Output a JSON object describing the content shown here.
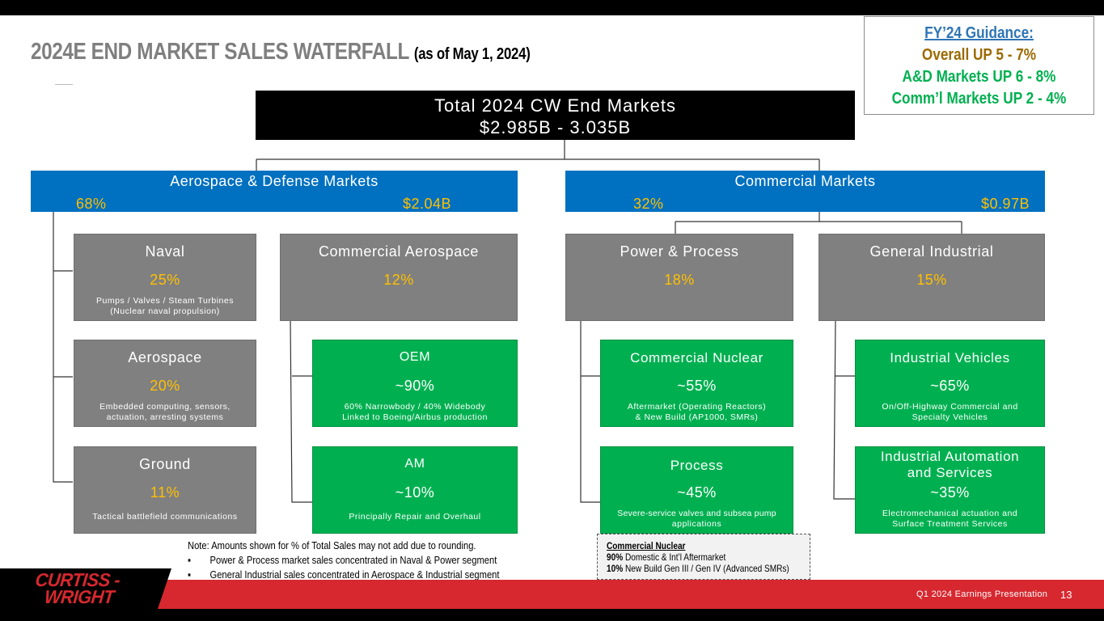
{
  "header": {
    "title": "2024E END MARKET SALES WATERFALL",
    "subtitle": "(as of May 1, 2024)"
  },
  "guidance": {
    "heading": "FY’24 Guidance:",
    "overall": "Overall UP 5 - 7%",
    "ad": "A&D Markets UP 6 - 8%",
    "comm": "Comm’l Markets UP 2 - 4%"
  },
  "total": {
    "label": "Total 2024 CW End Markets",
    "value": "$2.985B - 3.035B"
  },
  "ad_segment": {
    "name": "Aerospace & Defense Markets",
    "pct": "68%",
    "amount": "$2.04B"
  },
  "comm_segment": {
    "name": "Commercial Markets",
    "pct": "32%",
    "amount": "$0.97B"
  },
  "boxes": {
    "naval": {
      "title": "Naval",
      "pct": "25%",
      "desc1": "Pumps / Valves / Steam Turbines",
      "desc2": "(Nuclear naval propulsion)"
    },
    "aerospace": {
      "title": "Aerospace",
      "pct": "20%",
      "desc1": "Embedded computing, sensors,",
      "desc2": "actuation, arresting systems"
    },
    "ground": {
      "title": "Ground",
      "pct": "11%",
      "desc1": "Tactical battlefield communications"
    },
    "comm_aero": {
      "title": "Commercial Aerospace",
      "pct": "12%"
    },
    "oem": {
      "title": "OEM",
      "pct": "~90%",
      "desc1": "60% Narrowbody / 40% Widebody",
      "desc2": "Linked to Boeing/Airbus production"
    },
    "am": {
      "title": "AM",
      "pct": "~10%",
      "desc1": "Principally Repair and Overhaul"
    },
    "power": {
      "title": "Power & Process",
      "pct": "18%"
    },
    "nuclear": {
      "title": "Commercial Nuclear",
      "pct": "~55%",
      "desc1": "Aftermarket (Operating Reactors)",
      "desc2": "& New Build (AP1000, SMRs)"
    },
    "process": {
      "title": "Process",
      "pct": "~45%",
      "desc1": "Severe-service valves and subsea pump",
      "desc2": "applications"
    },
    "general": {
      "title": "General Industrial",
      "pct": "15%"
    },
    "vehicles": {
      "title": "Industrial Vehicles",
      "pct": "~65%",
      "desc1": "On/Off-Highway Commercial and",
      "desc2": "Specialty Vehicles"
    },
    "automation": {
      "title1": "Industrial Automation",
      "title2": "and Services",
      "pct": "~35%",
      "desc1": "Electromechanical actuation and",
      "desc2": "Surface Treatment Services"
    }
  },
  "notes": {
    "main": "Note: Amounts shown for % of Total Sales may not add due to rounding.",
    "b1": "Power & Process market sales concentrated in Naval & Power segment",
    "b2": "General Industrial sales concentrated in Aerospace & Industrial segment"
  },
  "nuclear_note": {
    "heading": "Commercial Nuclear",
    "l1_bold": "90%",
    "l1_text": " Domestic & Int’l Aftermarket",
    "l2_bold": "10%",
    "l2_text": " New Build Gen III / Gen IV (Advanced SMRs)"
  },
  "footer": {
    "logo_line1": "CURTISS -",
    "logo_line2": "WRIGHT",
    "presentation": "Q1 2024 Earnings Presentation",
    "page": "13"
  },
  "colors": {
    "blue": "#0070c0",
    "gray": "#808080",
    "green": "#00b050",
    "gold": "#ffc000",
    "red": "#d7282f"
  }
}
